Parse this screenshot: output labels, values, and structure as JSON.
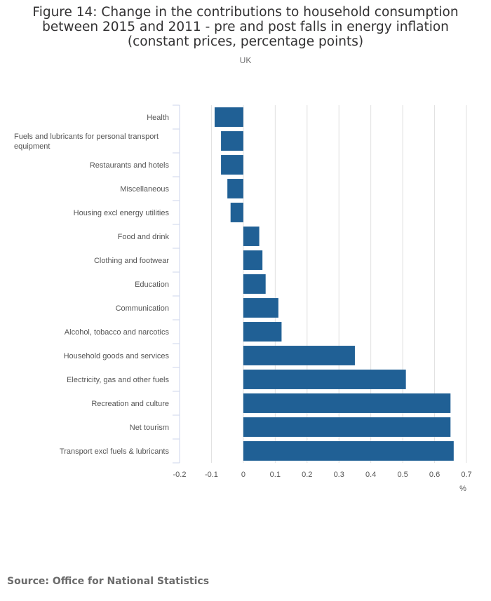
{
  "title": "Figure 14: Change in the contributions to household consumption between 2015 and 2011 - pre and post falls in energy inflation (constant prices, percentage points)",
  "subtitle": "UK",
  "source": "Source: Office for National Statistics",
  "colors": {
    "bar": "#206095",
    "grid": "#e0e0e0",
    "axis": "#ccd6eb"
  },
  "chart_data": {
    "type": "bar",
    "orientation": "horizontal",
    "title": "Figure 14: Change in the contributions to household consumption between 2015 and 2011 - pre and post falls in energy inflation (constant prices, percentage points)",
    "subtitle": "UK",
    "xlabel": "%",
    "ylabel": "",
    "xlim": [
      -0.2,
      0.7
    ],
    "xticks": [
      -0.2,
      -0.1,
      0,
      0.1,
      0.2,
      0.3,
      0.4,
      0.5,
      0.6,
      0.7
    ],
    "tick_labels": [
      "-0.2",
      "-0.1",
      "0",
      "0.1",
      "0.2",
      "0.3",
      "0.4",
      "0.5",
      "0.6",
      "0.7"
    ],
    "grid": true,
    "categories": [
      "Health",
      "Fuels and lubricants for personal transport equipment",
      "Restaurants and hotels",
      "Miscellaneous",
      "Housing excl energy utilities",
      "Food and drink",
      "Clothing and footwear",
      "Education",
      "Communication",
      "Alcohol, tobacco and narcotics",
      "Household goods and services",
      "Electricity, gas and other fuels",
      "Recreation and culture",
      "Net tourism",
      "Transport excl fuels & lubricants"
    ],
    "category_lines": [
      [
        "Health"
      ],
      [
        "Fuels and lubricants for personal transport",
        "equipment"
      ],
      [
        "Restaurants and hotels"
      ],
      [
        "Miscellaneous"
      ],
      [
        "Housing excl energy utilities"
      ],
      [
        "Food and drink"
      ],
      [
        "Clothing and footwear"
      ],
      [
        "Education"
      ],
      [
        "Communication"
      ],
      [
        "Alcohol, tobacco and narcotics"
      ],
      [
        "Household goods and services"
      ],
      [
        "Electricity, gas and other fuels"
      ],
      [
        "Recreation and culture"
      ],
      [
        "Net tourism"
      ],
      [
        "Transport excl fuels & lubricants"
      ]
    ],
    "values": [
      -0.09,
      -0.07,
      -0.07,
      -0.05,
      -0.04,
      0.05,
      0.06,
      0.07,
      0.11,
      0.12,
      0.35,
      0.51,
      0.65,
      0.65,
      0.66
    ]
  }
}
